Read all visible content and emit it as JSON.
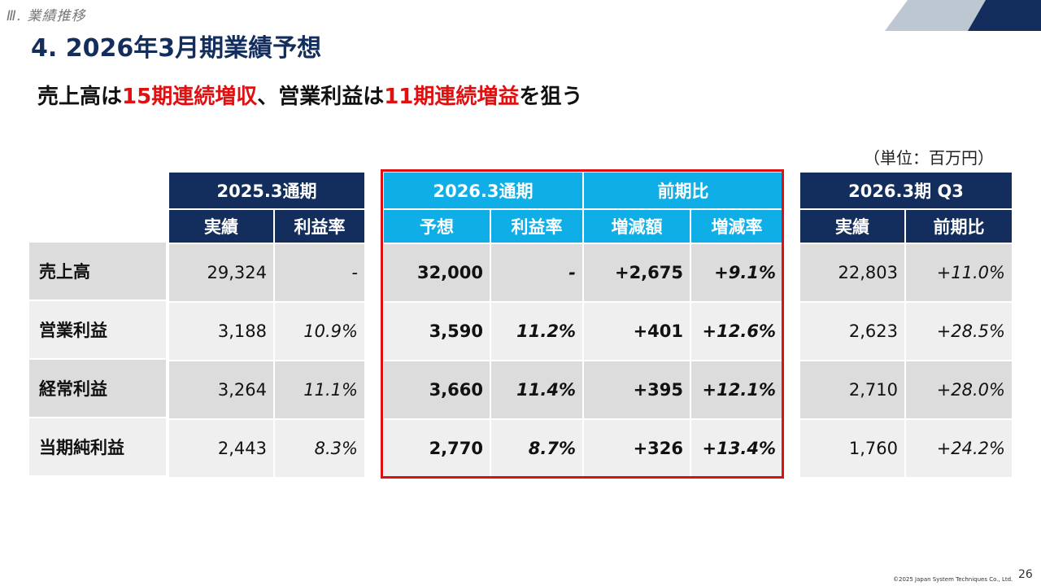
{
  "header": {
    "section_label": "Ⅲ.  業績推移",
    "title": "4. 2026年3月期業績予想"
  },
  "headline": {
    "part1": "売上高は",
    "part2": "15期連続増収",
    "part3": "、営業利益は",
    "part4": "11期連続増益",
    "part5": "を狙う"
  },
  "unit_note": "（単位：百万円）",
  "colors": {
    "navy": "#132e5c",
    "sky": "#0faee6",
    "red": "#e01010"
  },
  "row_labels": [
    "売上高",
    "営業利益",
    "経常利益",
    "当期純利益"
  ],
  "fy2025": {
    "title": "2025.3通期",
    "col_actual": "実績",
    "col_margin": "利益率",
    "rows": [
      {
        "actual": "29,324",
        "margin": "-"
      },
      {
        "actual": "3,188",
        "margin": "10.9%"
      },
      {
        "actual": "3,264",
        "margin": "11.1%"
      },
      {
        "actual": "2,443",
        "margin": "8.3%"
      }
    ]
  },
  "fy2026": {
    "title": "2026.3通期",
    "yoy_title": "前期比",
    "col_forecast": "予想",
    "col_margin": "利益率",
    "col_change": "増減額",
    "col_rate": "増減率",
    "rows": [
      {
        "forecast": "32,000",
        "margin": "-",
        "change": "+2,675",
        "rate": "+9.1%"
      },
      {
        "forecast": "3,590",
        "margin": "11.2%",
        "change": "+401",
        "rate": "+12.6%"
      },
      {
        "forecast": "3,660",
        "margin": "11.4%",
        "change": "+395",
        "rate": "+12.1%"
      },
      {
        "forecast": "2,770",
        "margin": "8.7%",
        "change": "+326",
        "rate": "+13.4%"
      }
    ]
  },
  "q3": {
    "title": "2026.3期 Q3",
    "col_actual": "実績",
    "col_yoy": "前期比",
    "rows": [
      {
        "actual": "22,803",
        "yoy": "+11.0%"
      },
      {
        "actual": "2,623",
        "yoy": "+28.5%"
      },
      {
        "actual": "2,710",
        "yoy": "+28.0%"
      },
      {
        "actual": "1,760",
        "yoy": "+24.2%"
      }
    ]
  },
  "footer": {
    "copyright": "©2025 Japan System Techniques Co., Ltd.",
    "page_number": "26"
  }
}
